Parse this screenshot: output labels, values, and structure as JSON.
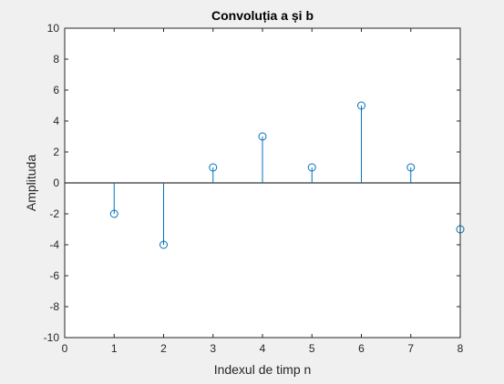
{
  "chart_data": {
    "type": "stem",
    "title": "Convoluția a și b",
    "xlabel": "Indexul de timp n",
    "ylabel": "Amplituda",
    "xlim": [
      0,
      8
    ],
    "ylim": [
      -10,
      10
    ],
    "xticks": [
      0,
      1,
      2,
      3,
      4,
      5,
      6,
      7,
      8
    ],
    "yticks": [
      -10,
      -8,
      -6,
      -4,
      -2,
      0,
      2,
      4,
      6,
      8,
      10
    ],
    "x": [
      1,
      2,
      3,
      4,
      5,
      6,
      7,
      8
    ],
    "y": [
      -2,
      -4,
      1,
      3,
      1,
      5,
      1,
      -3
    ],
    "grid": false,
    "baseline": 0,
    "colors": {
      "stem": "#0072bd",
      "axes": "#262626",
      "background": "#f0f0f0",
      "plot_area": "#ffffff"
    },
    "marker": "circle-icon"
  }
}
